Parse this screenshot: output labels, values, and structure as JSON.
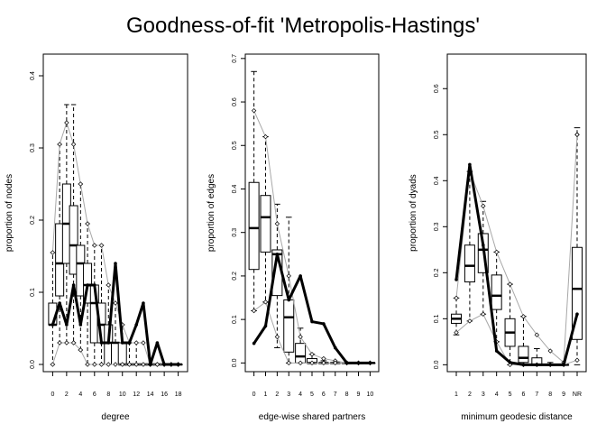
{
  "title": "Goodness-of-fit 'Metropolis-Hastings'",
  "chart_data": [
    {
      "type": "boxplot",
      "xlabel": "degree",
      "ylabel": "proportion of nodes",
      "x_tick_labels": [
        "0",
        "2",
        "4",
        "6",
        "8",
        "10",
        "12",
        "14",
        "16",
        "18"
      ],
      "y_ticks": [
        0,
        0.1,
        0.2,
        0.3,
        0.4
      ],
      "y_tick_labels": [
        "0.0",
        "0.1",
        "0.2",
        "0.3",
        "0.4"
      ],
      "ylim": [
        -0.01,
        0.43
      ],
      "categories": [
        "0",
        "1",
        "2",
        "3",
        "4",
        "5",
        "6",
        "7",
        "8",
        "9",
        "10",
        "11",
        "12",
        "13",
        "14",
        "15",
        "16",
        "17",
        "18"
      ],
      "boxes": [
        {
          "lo": 0,
          "q1": 0.055,
          "med": 0.055,
          "q3": 0.085,
          "hi": 0.155
        },
        {
          "lo": 0.03,
          "q1": 0.095,
          "med": 0.14,
          "q3": 0.195,
          "hi": 0.305
        },
        {
          "lo": 0.03,
          "q1": 0.14,
          "med": 0.195,
          "q3": 0.25,
          "hi": 0.36
        },
        {
          "lo": 0.03,
          "q1": 0.125,
          "med": 0.165,
          "q3": 0.22,
          "hi": 0.36
        },
        {
          "lo": 0.02,
          "q1": 0.095,
          "med": 0.14,
          "q3": 0.165,
          "hi": 0.25
        },
        {
          "lo": 0,
          "q1": 0.085,
          "med": 0.11,
          "q3": 0.14,
          "hi": 0.195
        },
        {
          "lo": 0,
          "q1": 0.03,
          "med": 0.085,
          "q3": 0.11,
          "hi": 0.165
        },
        {
          "lo": 0,
          "q1": 0.03,
          "med": 0.055,
          "q3": 0.085,
          "hi": 0.165
        },
        {
          "lo": 0,
          "q1": 0,
          "med": 0.03,
          "q3": 0.055,
          "hi": 0.11
        },
        {
          "lo": 0,
          "q1": 0,
          "med": 0.03,
          "q3": 0.03,
          "hi": 0.085
        },
        {
          "lo": 0,
          "q1": 0,
          "med": 0,
          "q3": 0.03,
          "hi": 0.055
        },
        {
          "lo": 0,
          "q1": 0,
          "med": 0,
          "q3": 0,
          "hi": 0.03
        },
        {
          "lo": 0,
          "q1": 0,
          "med": 0,
          "q3": 0,
          "hi": 0.03
        },
        {
          "lo": 0,
          "q1": 0,
          "med": 0,
          "q3": 0,
          "hi": 0
        },
        {
          "lo": 0,
          "q1": 0,
          "med": 0,
          "q3": 0,
          "hi": 0
        },
        {
          "lo": 0,
          "q1": 0,
          "med": 0,
          "q3": 0,
          "hi": 0
        },
        {
          "lo": 0,
          "q1": 0,
          "med": 0,
          "q3": 0,
          "hi": 0
        },
        {
          "lo": 0,
          "q1": 0,
          "med": 0,
          "q3": 0,
          "hi": 0
        },
        {
          "lo": 0,
          "q1": 0,
          "med": 0,
          "q3": 0,
          "hi": 0
        }
      ],
      "observed": [
        0.055,
        0.085,
        0.055,
        0.11,
        0.055,
        0.11,
        0.11,
        0.03,
        0.03,
        0.14,
        0.03,
        0.03,
        0.055,
        0.085,
        0,
        0.03,
        0,
        0,
        0
      ],
      "band_upper": [
        0.155,
        0.305,
        0.335,
        0.305,
        0.25,
        0.195,
        0.165,
        0.165,
        0.11,
        0.085,
        0.055,
        0.03,
        0.03,
        0.03,
        0,
        0,
        0,
        0,
        0
      ],
      "band_lower": [
        0,
        0.03,
        0.03,
        0.03,
        0.02,
        0,
        0,
        0,
        0,
        0,
        0,
        0,
        0,
        0,
        0,
        0,
        0,
        0,
        0
      ],
      "outliers": []
    },
    {
      "type": "boxplot",
      "xlabel": "edge-wise shared partners",
      "ylabel": "proportion of edges",
      "x_tick_labels": [
        "0",
        "1",
        "2",
        "3",
        "4",
        "5",
        "6",
        "7",
        "8",
        "9",
        "10"
      ],
      "y_ticks": [
        0,
        0.1,
        0.2,
        0.3,
        0.4,
        0.5,
        0.6,
        0.7
      ],
      "y_tick_labels": [
        "0.0",
        "0.1",
        "0.2",
        "0.3",
        "0.4",
        "0.5",
        "0.6",
        "0.7"
      ],
      "ylim": [
        -0.02,
        0.71
      ],
      "categories": [
        "0",
        "1",
        "2",
        "3",
        "4",
        "5",
        "6",
        "7",
        "8",
        "9",
        "10"
      ],
      "boxes": [
        {
          "lo": 0.12,
          "q1": 0.215,
          "med": 0.31,
          "q3": 0.415,
          "hi": 0.67
        },
        {
          "lo": 0.14,
          "q1": 0.255,
          "med": 0.335,
          "q3": 0.385,
          "hi": 0.52
        },
        {
          "lo": 0.035,
          "q1": 0.155,
          "med": 0.25,
          "q3": 0.26,
          "hi": 0.365
        },
        {
          "lo": 0,
          "q1": 0.025,
          "med": 0.105,
          "q3": 0.145,
          "hi": 0.335
        },
        {
          "lo": 0,
          "q1": 0,
          "med": 0.015,
          "q3": 0.045,
          "hi": 0.08
        },
        {
          "lo": 0,
          "q1": 0,
          "med": 0,
          "q3": 0.01,
          "hi": 0.02
        },
        {
          "lo": 0,
          "q1": 0,
          "med": 0,
          "q3": 0,
          "hi": 0.005
        },
        {
          "lo": 0,
          "q1": 0,
          "med": 0,
          "q3": 0,
          "hi": 0
        },
        {
          "lo": 0,
          "q1": 0,
          "med": 0,
          "q3": 0,
          "hi": 0
        },
        {
          "lo": 0,
          "q1": 0,
          "med": 0,
          "q3": 0,
          "hi": 0
        },
        {
          "lo": 0,
          "q1": 0,
          "med": 0,
          "q3": 0,
          "hi": 0
        }
      ],
      "observed": [
        0.045,
        0.085,
        0.25,
        0.145,
        0.2,
        0.095,
        0.09,
        0.035,
        0,
        0,
        0
      ],
      "band_upper": [
        0.58,
        0.52,
        0.32,
        0.2,
        0.06,
        0.02,
        0.01,
        0.005,
        0,
        0,
        0
      ],
      "band_lower": [
        0.12,
        0.14,
        0.06,
        0,
        0,
        0,
        0,
        0,
        0,
        0,
        0
      ],
      "outliers": []
    },
    {
      "type": "boxplot",
      "xlabel": "minimum geodesic distance",
      "ylabel": "proportion of dyads",
      "x_tick_labels": [
        "1",
        "2",
        "3",
        "4",
        "5",
        "6",
        "7",
        "8",
        "9",
        "NR"
      ],
      "y_ticks": [
        0,
        0.1,
        0.2,
        0.3,
        0.4,
        0.5,
        0.6
      ],
      "y_tick_labels": [
        "0.0",
        "0.1",
        "0.2",
        "0.3",
        "0.4",
        "0.5",
        "0.6"
      ],
      "ylim": [
        -0.015,
        0.675
      ],
      "categories": [
        "1",
        "2",
        "3",
        "4",
        "5",
        "6",
        "7",
        "8",
        "9",
        "NR"
      ],
      "boxes": [
        {
          "lo": 0.065,
          "q1": 0.09,
          "med": 0.1,
          "q3": 0.11,
          "hi": 0.145
        },
        {
          "lo": 0.095,
          "q1": 0.18,
          "med": 0.215,
          "q3": 0.26,
          "hi": 0.42
        },
        {
          "lo": 0.11,
          "q1": 0.2,
          "med": 0.25,
          "q3": 0.285,
          "hi": 0.355
        },
        {
          "lo": 0.05,
          "q1": 0.12,
          "med": 0.15,
          "q3": 0.195,
          "hi": 0.245
        },
        {
          "lo": 0,
          "q1": 0.04,
          "med": 0.07,
          "q3": 0.1,
          "hi": 0.175
        },
        {
          "lo": 0,
          "q1": 0.005,
          "med": 0.015,
          "q3": 0.04,
          "hi": 0.105
        },
        {
          "lo": 0,
          "q1": 0,
          "med": 0,
          "q3": 0.015,
          "hi": 0.035
        },
        {
          "lo": 0,
          "q1": 0,
          "med": 0,
          "q3": 0,
          "hi": 0.005
        },
        {
          "lo": 0,
          "q1": 0,
          "med": 0,
          "q3": 0,
          "hi": 0
        },
        {
          "lo": 0,
          "q1": 0.055,
          "med": 0.165,
          "q3": 0.255,
          "hi": 0.515
        }
      ],
      "observed": [
        0.185,
        0.435,
        0.26,
        0.03,
        0.005,
        0,
        0,
        0,
        0,
        0.11
      ],
      "band_upper": [
        0.145,
        0.42,
        0.345,
        0.245,
        0.175,
        0.105,
        0.065,
        0.03,
        0.005,
        0.5
      ],
      "band_lower": [
        0.07,
        0.095,
        0.11,
        0.05,
        0,
        0,
        0,
        0,
        0,
        0.01
      ],
      "outliers": [
        0.5
      ]
    }
  ]
}
